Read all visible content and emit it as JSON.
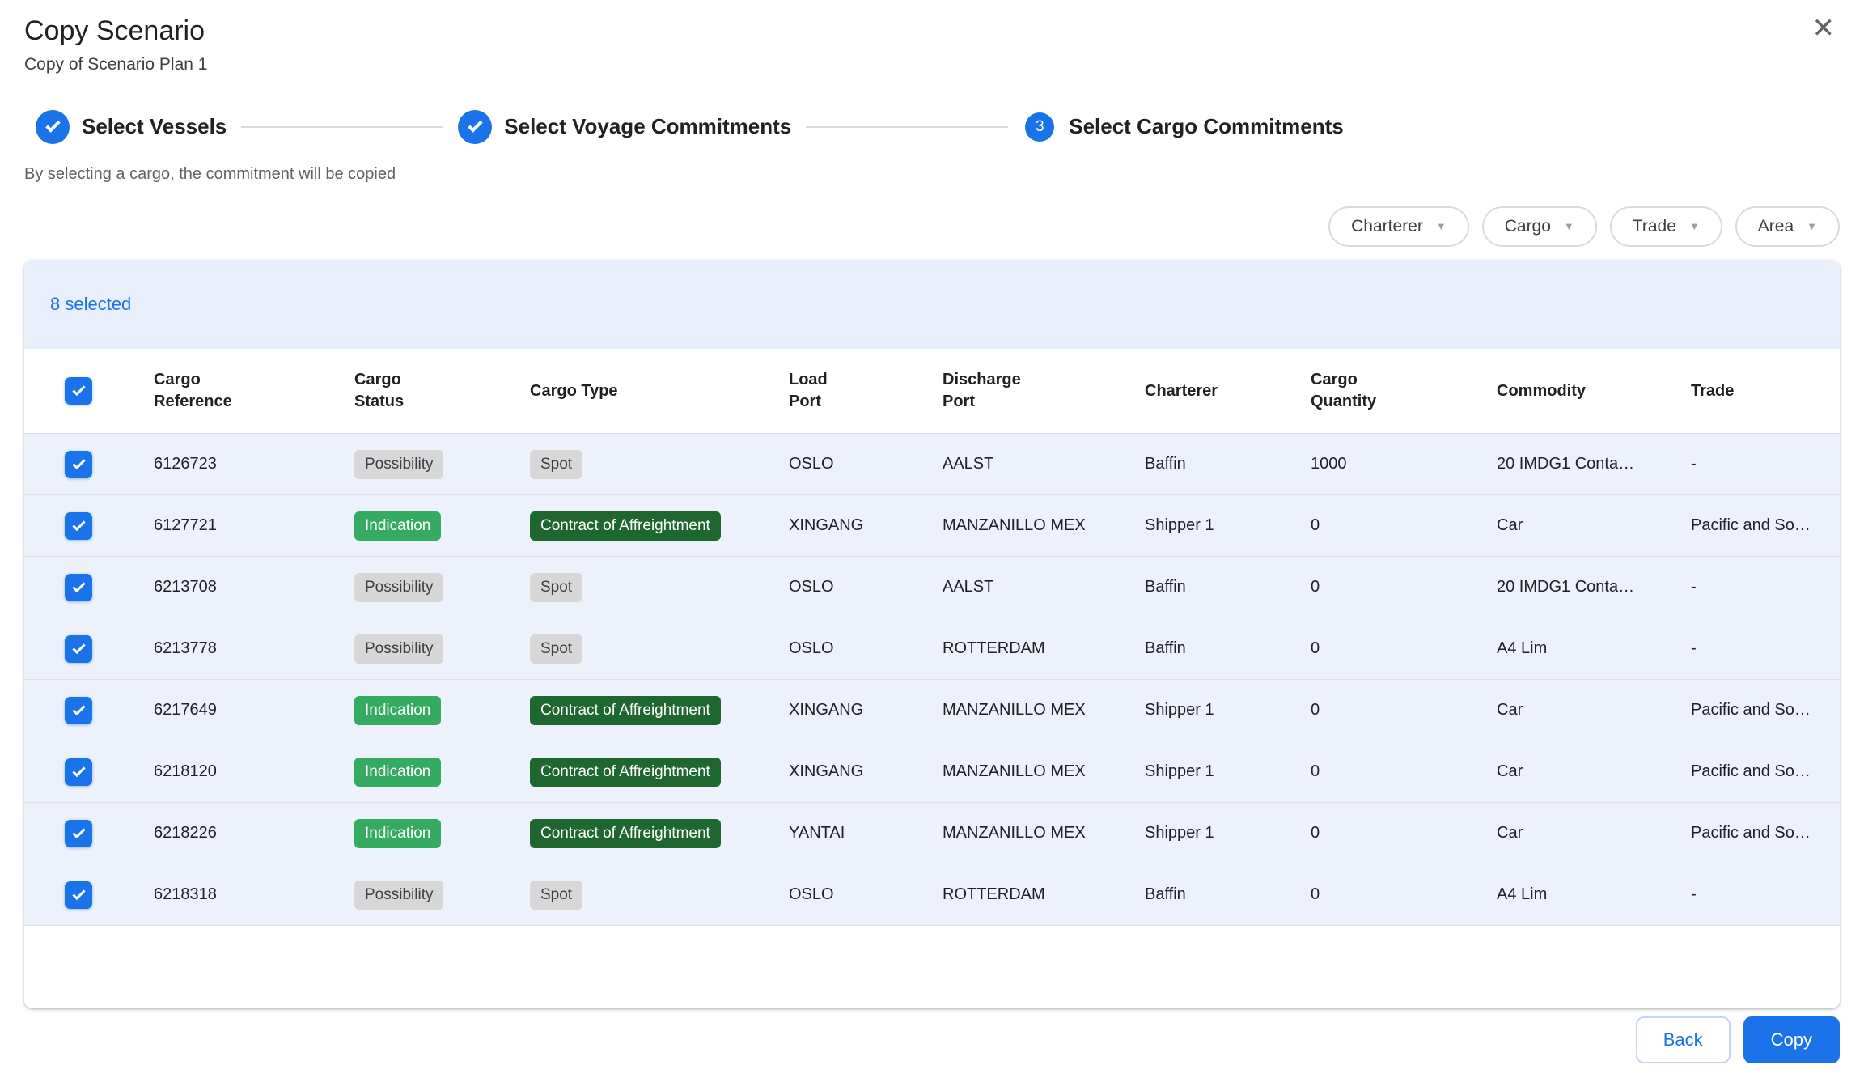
{
  "dialog": {
    "title": "Copy Scenario",
    "subtitle": "Copy of Scenario Plan 1",
    "close_icon": "✕",
    "helper_text": "By selecting a cargo, the commitment will be copied"
  },
  "stepper": {
    "steps": [
      {
        "label": "Select Vessels",
        "state": "completed"
      },
      {
        "label": "Select Voyage Commitments",
        "state": "completed"
      },
      {
        "label": "Select Cargo Commitments",
        "state": "current",
        "number": "3"
      }
    ]
  },
  "filters": [
    {
      "label": "Charterer"
    },
    {
      "label": "Cargo"
    },
    {
      "label": "Trade"
    },
    {
      "label": "Area"
    }
  ],
  "selection": {
    "count_label": "8 selected"
  },
  "table": {
    "select_all_checked": true,
    "columns": [
      {
        "lines": [
          "Cargo",
          "Reference"
        ]
      },
      {
        "lines": [
          "Cargo",
          "Status"
        ]
      },
      {
        "lines": [
          "Cargo Type"
        ]
      },
      {
        "lines": [
          "Load",
          "Port"
        ]
      },
      {
        "lines": [
          "Discharge",
          "Port"
        ]
      },
      {
        "lines": [
          "Charterer"
        ]
      },
      {
        "lines": [
          "Cargo",
          "Quantity"
        ]
      },
      {
        "lines": [
          "Commodity"
        ]
      },
      {
        "lines": [
          "Trade"
        ]
      }
    ],
    "rows": [
      {
        "selected": true,
        "reference": "6126723",
        "status": "Possibility",
        "type": "Spot",
        "load_port": "OSLO",
        "discharge_port": "AALST",
        "charterer": "Baffin",
        "quantity": "1000",
        "commodity": "20 IMDG1 Conta…",
        "trade": "-"
      },
      {
        "selected": true,
        "reference": "6127721",
        "status": "Indication",
        "type": "Contract of Affreightment",
        "load_port": "XINGANG",
        "discharge_port": "MANZANILLO MEX",
        "charterer": "Shipper 1",
        "quantity": "0",
        "commodity": "Car",
        "trade": "Pacific and So…"
      },
      {
        "selected": true,
        "reference": "6213708",
        "status": "Possibility",
        "type": "Spot",
        "load_port": "OSLO",
        "discharge_port": "AALST",
        "charterer": "Baffin",
        "quantity": "0",
        "commodity": "20 IMDG1 Conta…",
        "trade": "-"
      },
      {
        "selected": true,
        "reference": "6213778",
        "status": "Possibility",
        "type": "Spot",
        "load_port": "OSLO",
        "discharge_port": "ROTTERDAM",
        "charterer": "Baffin",
        "quantity": "0",
        "commodity": "A4 Lim",
        "trade": "-"
      },
      {
        "selected": true,
        "reference": "6217649",
        "status": "Indication",
        "type": "Contract of Affreightment",
        "load_port": "XINGANG",
        "discharge_port": "MANZANILLO MEX",
        "charterer": "Shipper 1",
        "quantity": "0",
        "commodity": "Car",
        "trade": "Pacific and So…"
      },
      {
        "selected": true,
        "reference": "6218120",
        "status": "Indication",
        "type": "Contract of Affreightment",
        "load_port": "XINGANG",
        "discharge_port": "MANZANILLO MEX",
        "charterer": "Shipper 1",
        "quantity": "0",
        "commodity": "Car",
        "trade": "Pacific and So…"
      },
      {
        "selected": true,
        "reference": "6218226",
        "status": "Indication",
        "type": "Contract of Affreightment",
        "load_port": "YANTAI",
        "discharge_port": "MANZANILLO MEX",
        "charterer": "Shipper 1",
        "quantity": "0",
        "commodity": "Car",
        "trade": "Pacific and So…"
      },
      {
        "selected": true,
        "reference": "6218318",
        "status": "Possibility",
        "type": "Spot",
        "load_port": "OSLO",
        "discharge_port": "ROTTERDAM",
        "charterer": "Baffin",
        "quantity": "0",
        "commodity": "A4 Lim",
        "trade": "-"
      }
    ]
  },
  "footer": {
    "back_label": "Back",
    "copy_label": "Copy"
  },
  "colors": {
    "accent_blue": "#1a73e8",
    "badge_gray_bg": "#d7d7d7",
    "badge_green_bg": "#34ab60",
    "badge_dark_green_bg": "#1e682f",
    "selection_row_bg": "#edf1fc",
    "banner_bg": "#e9eefb"
  }
}
